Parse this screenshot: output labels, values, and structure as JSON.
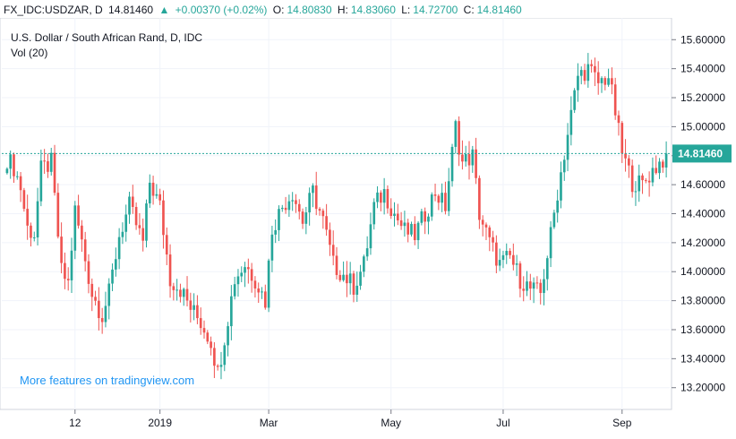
{
  "header": {
    "symbol": "FX_IDC:USDZAR, D",
    "last": "14.81460",
    "arrow": "▲",
    "change": "+0.00370 (+0.02%)",
    "o_label": "O:",
    "o_value": "14.80830",
    "h_label": "H:",
    "h_value": "14.83060",
    "l_label": "L:",
    "l_value": "14.72700",
    "c_label": "C:",
    "c_value": "14.81460"
  },
  "legend": {
    "title": "U.S. Dollar / South African Rand, D, IDC",
    "vol": "Vol (20)"
  },
  "watermark": "More features on tradingview.com",
  "colors": {
    "up": "#26a69a",
    "down": "#ef5350",
    "price_line": "#26a69a",
    "axis": "#131722",
    "link": "#2196f3"
  },
  "chart_data": {
    "type": "candlestick",
    "ylim": [
      13.05,
      15.75
    ],
    "y_ticks": [
      "13.20000",
      "13.40000",
      "13.60000",
      "13.80000",
      "14.00000",
      "14.20000",
      "14.40000",
      "14.60000",
      "14.80000",
      "15.00000",
      "15.20000",
      "15.40000",
      "15.60000"
    ],
    "x_ticks": [
      {
        "label": "12",
        "index": 20
      },
      {
        "label": "2019",
        "index": 45
      },
      {
        "label": "Mar",
        "index": 77
      },
      {
        "label": "May",
        "index": 113
      },
      {
        "label": "Jul",
        "index": 146
      },
      {
        "label": "Sep",
        "index": 181
      }
    ],
    "last_price_label": "14.81460",
    "last_price": 14.8146,
    "count": 195,
    "anchors": [
      [
        0,
        14.78
      ],
      [
        2,
        14.72
      ],
      [
        4,
        14.58
      ],
      [
        6,
        14.3
      ],
      [
        8,
        14.26
      ],
      [
        10,
        14.7
      ],
      [
        13,
        14.75
      ],
      [
        16,
        14.0
      ],
      [
        18,
        13.92
      ],
      [
        20,
        14.42
      ],
      [
        22,
        14.2
      ],
      [
        25,
        13.85
      ],
      [
        28,
        13.7
      ],
      [
        30,
        13.85
      ],
      [
        33,
        14.25
      ],
      [
        36,
        14.45
      ],
      [
        40,
        14.2
      ],
      [
        42,
        14.62
      ],
      [
        45,
        14.45
      ],
      [
        48,
        13.95
      ],
      [
        51,
        13.88
      ],
      [
        54,
        13.75
      ],
      [
        57,
        13.65
      ],
      [
        60,
        13.52
      ],
      [
        62,
        13.3
      ],
      [
        64,
        13.55
      ],
      [
        67,
        13.95
      ],
      [
        70,
        14.05
      ],
      [
        73,
        13.95
      ],
      [
        76,
        13.8
      ],
      [
        78,
        14.3
      ],
      [
        81,
        14.45
      ],
      [
        84,
        14.55
      ],
      [
        87,
        14.35
      ],
      [
        90,
        14.55
      ],
      [
        93,
        14.35
      ],
      [
        96,
        14.05
      ],
      [
        99,
        13.98
      ],
      [
        102,
        13.9
      ],
      [
        105,
        14.05
      ],
      [
        108,
        14.45
      ],
      [
        111,
        14.55
      ],
      [
        114,
        14.4
      ],
      [
        117,
        14.28
      ],
      [
        120,
        14.25
      ],
      [
        123,
        14.4
      ],
      [
        126,
        14.55
      ],
      [
        129,
        14.45
      ],
      [
        132,
        15.0
      ],
      [
        134,
        14.75
      ],
      [
        137,
        14.8
      ],
      [
        139,
        14.4
      ],
      [
        142,
        14.2
      ],
      [
        145,
        14.05
      ],
      [
        148,
        14.1
      ],
      [
        151,
        13.95
      ],
      [
        154,
        13.88
      ],
      [
        157,
        13.85
      ],
      [
        160,
        14.25
      ],
      [
        162,
        14.55
      ],
      [
        165,
        14.95
      ],
      [
        168,
        15.35
      ],
      [
        171,
        15.4
      ],
      [
        174,
        15.3
      ],
      [
        177,
        15.35
      ],
      [
        179,
        15.1
      ],
      [
        181,
        14.82
      ],
      [
        184,
        14.62
      ],
      [
        187,
        14.6
      ],
      [
        190,
        14.7
      ],
      [
        194,
        14.8
      ]
    ]
  }
}
